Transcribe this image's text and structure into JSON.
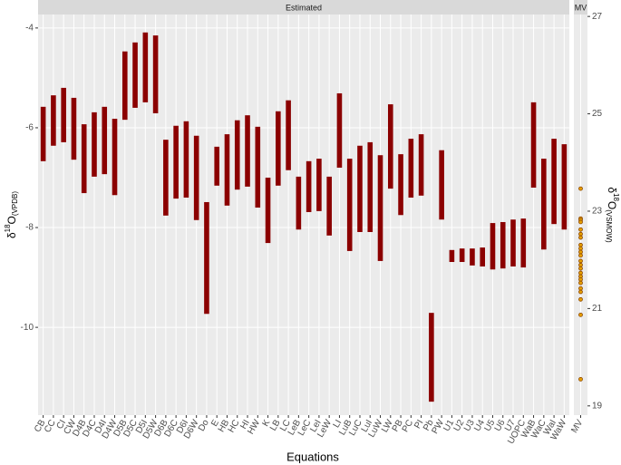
{
  "chart_data": [
    {
      "type": "range",
      "strip": "Estimated",
      "ylabel": {
        "symbol": "δ",
        "sup": "18",
        "main": "O",
        "sub": "(VPDB)"
      },
      "xlabel": "Equations",
      "color": "#8b0000",
      "grid": true,
      "ylim": [
        -11.76,
        -3.73
      ],
      "yticks": [
        -10,
        -8,
        -6,
        -4
      ],
      "categories": [
        "CB",
        "CC",
        "CI",
        "CW",
        "D4B",
        "D4C",
        "D4I",
        "D4W",
        "D5B",
        "D5C",
        "D5I",
        "D5W",
        "D6B",
        "D6C",
        "D6I",
        "D6W",
        "Do",
        "E",
        "HB",
        "HC",
        "HI",
        "HW",
        "K",
        "LB",
        "LC",
        "LeB",
        "LeC",
        "LeI",
        "LeW",
        "LI",
        "LuB",
        "LuC",
        "LuI",
        "LuW",
        "LW",
        "PB",
        "PC",
        "PI",
        "Pb",
        "PW",
        "U1",
        "U2",
        "U3",
        "U4",
        "U5",
        "U6",
        "U7",
        "UOPC",
        "WaB",
        "WaC",
        "WaI",
        "WaW"
      ],
      "high": [
        -5.58,
        -5.35,
        -5.2,
        -5.4,
        -5.93,
        -5.69,
        -5.58,
        -5.82,
        -4.47,
        -4.29,
        -4.09,
        -4.15,
        -6.24,
        -5.96,
        -5.87,
        -6.16,
        -7.49,
        -6.38,
        -6.13,
        -5.85,
        -5.75,
        -5.98,
        -7.0,
        -5.67,
        -5.45,
        -6.98,
        -6.67,
        -6.62,
        -6.98,
        -5.31,
        -6.62,
        -6.36,
        -6.29,
        -6.55,
        -5.53,
        -6.53,
        -6.22,
        -6.13,
        -9.71,
        -6.45,
        -8.45,
        -8.42,
        -8.42,
        -8.4,
        -7.91,
        -7.89,
        -7.84,
        -7.82,
        -5.49,
        -6.62,
        -6.22,
        -6.33
      ],
      "low": [
        -6.67,
        -6.36,
        -6.29,
        -6.64,
        -7.31,
        -6.98,
        -6.93,
        -7.35,
        -5.84,
        -5.6,
        -5.49,
        -5.71,
        -7.76,
        -7.42,
        -7.4,
        -7.85,
        -9.73,
        -7.16,
        -7.56,
        -7.24,
        -7.18,
        -7.6,
        -8.31,
        -7.16,
        -6.85,
        -8.04,
        -7.69,
        -7.67,
        -8.16,
        -6.8,
        -8.47,
        -8.09,
        -8.09,
        -8.67,
        -7.22,
        -7.75,
        -7.4,
        -7.36,
        -11.49,
        -7.84,
        -8.69,
        -8.69,
        -8.76,
        -8.78,
        -8.84,
        -8.82,
        -8.78,
        -8.8,
        -7.2,
        -8.44,
        -7.93,
        -8.04
      ]
    },
    {
      "type": "strip-points",
      "strip": "MV",
      "categories": [
        "MV"
      ],
      "color": "#e69f00",
      "ylim": [
        -11.76,
        -3.73
      ],
      "values": [
        -7.22,
        -7.82,
        -7.85,
        -7.89,
        -8.04,
        -8.13,
        -8.2,
        -8.35,
        -8.42,
        -8.49,
        -8.56,
        -8.67,
        -8.75,
        -8.82,
        -8.91,
        -8.98,
        -9.04,
        -9.11,
        -9.22,
        -9.29,
        -9.44,
        -9.75,
        -11.04
      ],
      "y2label": {
        "symbol": "δ",
        "sup": "18",
        "main": "O",
        "sub": "(VSMOW)"
      },
      "y2lim": [
        18.81,
        27.04
      ],
      "y2ticks": [
        19,
        21,
        23,
        25,
        27
      ]
    }
  ]
}
